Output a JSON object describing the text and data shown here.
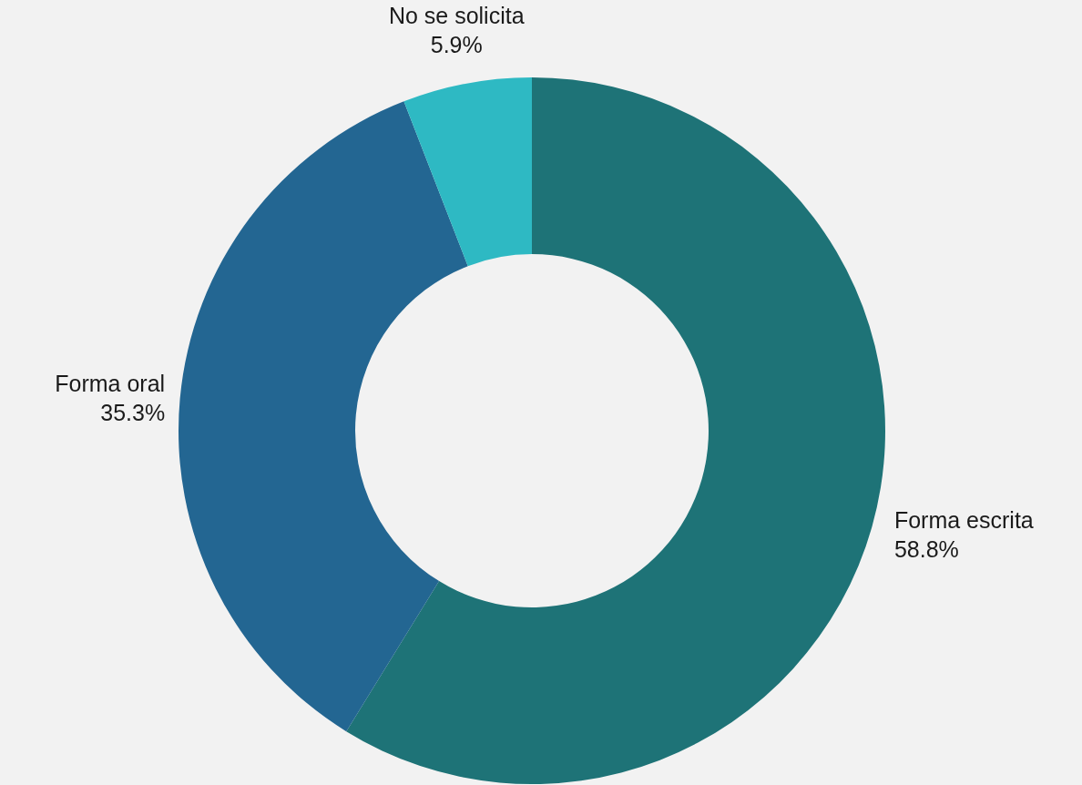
{
  "chart_data": {
    "type": "donut",
    "categories": [
      "Forma escrita",
      "Forma oral",
      "No se solicita"
    ],
    "values": [
      58.8,
      35.3,
      5.9
    ],
    "value_labels": [
      "58.8%",
      "35.3%",
      "5.9%"
    ],
    "colors": [
      "#1e7377",
      "#236692",
      "#2eb9c3"
    ]
  }
}
